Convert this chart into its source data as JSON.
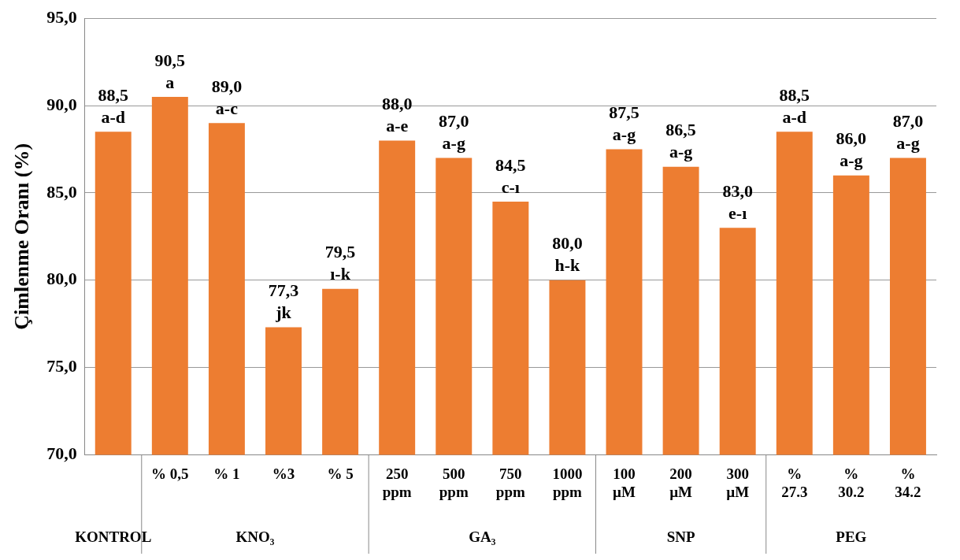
{
  "chart_data": {
    "type": "bar",
    "ylabel": "Çimlenme Oranı (%)",
    "categories": [
      null,
      "% 0,5",
      "% 1",
      "%3",
      "% 5",
      "250\nppm",
      "500\nppm",
      "750\nppm",
      "1000\nppm",
      "100\nµM",
      "200\nµM",
      "300\nµM",
      "%\n27.3",
      "%\n30.2",
      "%\n34.2"
    ],
    "values": [
      88.5,
      90.5,
      89.0,
      77.3,
      79.5,
      88.0,
      87.0,
      84.5,
      80.0,
      87.5,
      86.5,
      83.0,
      88.5,
      86.0,
      87.0
    ],
    "value_labels": [
      "88,5\na-d",
      "90,5\na",
      "89,0\na-c",
      "77,3\njk",
      "79,5\nı-k",
      "88,0\na-e",
      "87,0\na-g",
      "84,5\nc-ı",
      "80,0\nh-k",
      "87,5\na-g",
      "86,5\na-g",
      "83,0\ne-ı",
      "88,5\na-d",
      "86,0\na-g",
      "87,0\na-g"
    ],
    "color": "#ed7d31",
    "ylim": [
      70,
      95
    ],
    "yticks": [
      {
        "value": 70,
        "label": "70,0"
      },
      {
        "value": 75,
        "label": "75,0"
      },
      {
        "value": 80,
        "label": "80,0"
      },
      {
        "value": 85,
        "label": "85,0"
      },
      {
        "value": 90,
        "label": "90,0"
      },
      {
        "value": 95,
        "label": "95,0"
      }
    ],
    "grid": "y",
    "annotations": [
      "KONTROL",
      "KNO₃",
      "GA₃",
      "SNP",
      "PEG"
    ]
  }
}
